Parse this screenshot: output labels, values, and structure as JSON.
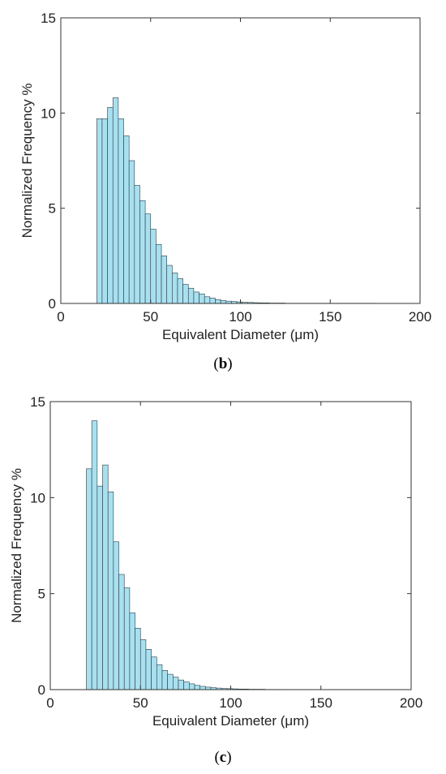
{
  "chart_data": [
    {
      "type": "bar",
      "panel_label": "b",
      "xlabel": "Equivalent Diameter (μm)",
      "ylabel": "Normalized  Frequency %",
      "xlim": [
        0,
        200
      ],
      "ylim": [
        0,
        15
      ],
      "xticks": [
        "0",
        "50",
        "100",
        "150",
        "200"
      ],
      "yticks": [
        "0",
        "5",
        "10",
        "15"
      ],
      "bin_width": 3,
      "bin_starts": [
        20,
        23,
        26,
        29,
        32,
        35,
        38,
        41,
        44,
        47,
        50,
        53,
        56,
        59,
        62,
        65,
        68,
        71,
        74,
        77,
        80,
        83,
        86,
        89,
        92,
        95,
        98,
        101,
        104,
        107,
        110,
        113,
        116,
        119,
        122,
        125,
        128,
        131,
        134,
        137,
        140,
        143,
        146,
        149,
        152,
        155,
        158,
        161,
        164,
        167,
        170,
        173
      ],
      "values": [
        9.7,
        9.7,
        10.3,
        10.8,
        9.7,
        8.8,
        7.5,
        6.2,
        5.4,
        4.7,
        3.9,
        3.1,
        2.5,
        2.0,
        1.6,
        1.3,
        1.0,
        0.8,
        0.6,
        0.5,
        0.35,
        0.28,
        0.2,
        0.15,
        0.12,
        0.1,
        0.08,
        0.06,
        0.05,
        0.04,
        0.03,
        0.03,
        0.02,
        0.02,
        0.02,
        0.01,
        0.01,
        0.01,
        0.01,
        0.01,
        0.01,
        0.01,
        0.01,
        0.01,
        0.01,
        0.01,
        0.01,
        0.01,
        0.01,
        0.01,
        0.01,
        0.01
      ],
      "bar_color": "#a8e0f0",
      "edge_color": "#2b3a40"
    },
    {
      "type": "bar",
      "panel_label": "c",
      "xlabel": "Equivalent Diameter (μm)",
      "ylabel": "Normalized  Frequency %",
      "xlim": [
        0,
        200
      ],
      "ylim": [
        0,
        15
      ],
      "xticks": [
        "0",
        "50",
        "100",
        "150",
        "200"
      ],
      "yticks": [
        "0",
        "5",
        "10",
        "15"
      ],
      "bin_width": 3,
      "bin_starts": [
        20,
        23,
        26,
        29,
        32,
        35,
        38,
        41,
        44,
        47,
        50,
        53,
        56,
        59,
        62,
        65,
        68,
        71,
        74,
        77,
        80,
        83,
        86,
        89,
        92,
        95,
        98,
        101,
        104,
        107,
        110,
        113,
        116,
        119,
        122,
        125
      ],
      "values": [
        11.5,
        14.0,
        10.6,
        11.7,
        10.3,
        7.7,
        6.0,
        5.3,
        4.0,
        3.2,
        2.6,
        2.1,
        1.7,
        1.3,
        1.0,
        0.8,
        0.65,
        0.5,
        0.4,
        0.3,
        0.22,
        0.17,
        0.13,
        0.1,
        0.08,
        0.06,
        0.05,
        0.04,
        0.03,
        0.03,
        0.02,
        0.02,
        0.02,
        0.01,
        0.01,
        0.01
      ],
      "bar_color": "#a8e0f0",
      "edge_color": "#2b3a40"
    }
  ]
}
